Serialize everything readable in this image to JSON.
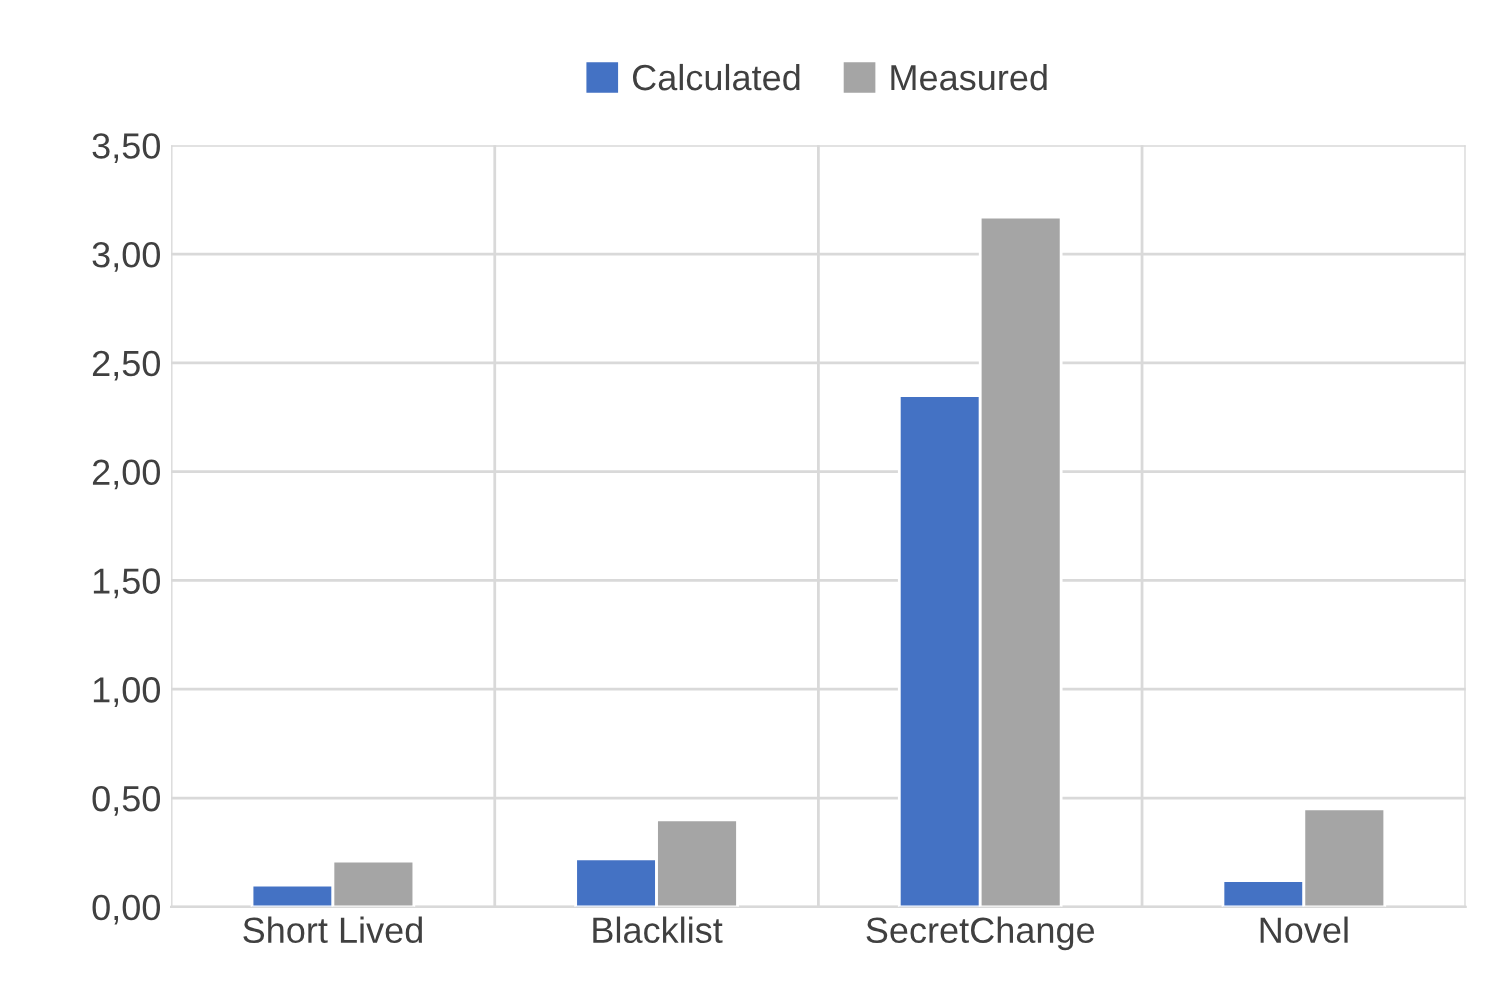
{
  "chart_data": {
    "type": "bar",
    "categories": [
      "Short Lived",
      "Blacklist",
      "SecretChange",
      "Novel"
    ],
    "series": [
      {
        "name": "Calculated",
        "color": "#4472c4",
        "values": [
          0.1,
          0.22,
          2.35,
          0.12
        ]
      },
      {
        "name": "Measured",
        "color": "#a5a5a5",
        "values": [
          0.21,
          0.4,
          3.17,
          0.45
        ]
      }
    ],
    "ylim": [
      0,
      3.5
    ],
    "yticks": [
      {
        "value": 0,
        "label": "0,00"
      },
      {
        "value": 0.5,
        "label": "0,50"
      },
      {
        "value": 1,
        "label": "1,00"
      },
      {
        "value": 1.5,
        "label": "1,50"
      },
      {
        "value": 2,
        "label": "2,00"
      },
      {
        "value": 2.5,
        "label": "2,50"
      },
      {
        "value": 3,
        "label": "3,00"
      },
      {
        "value": 3.5,
        "label": "3,50"
      }
    ],
    "grid": true,
    "legend": "top"
  }
}
